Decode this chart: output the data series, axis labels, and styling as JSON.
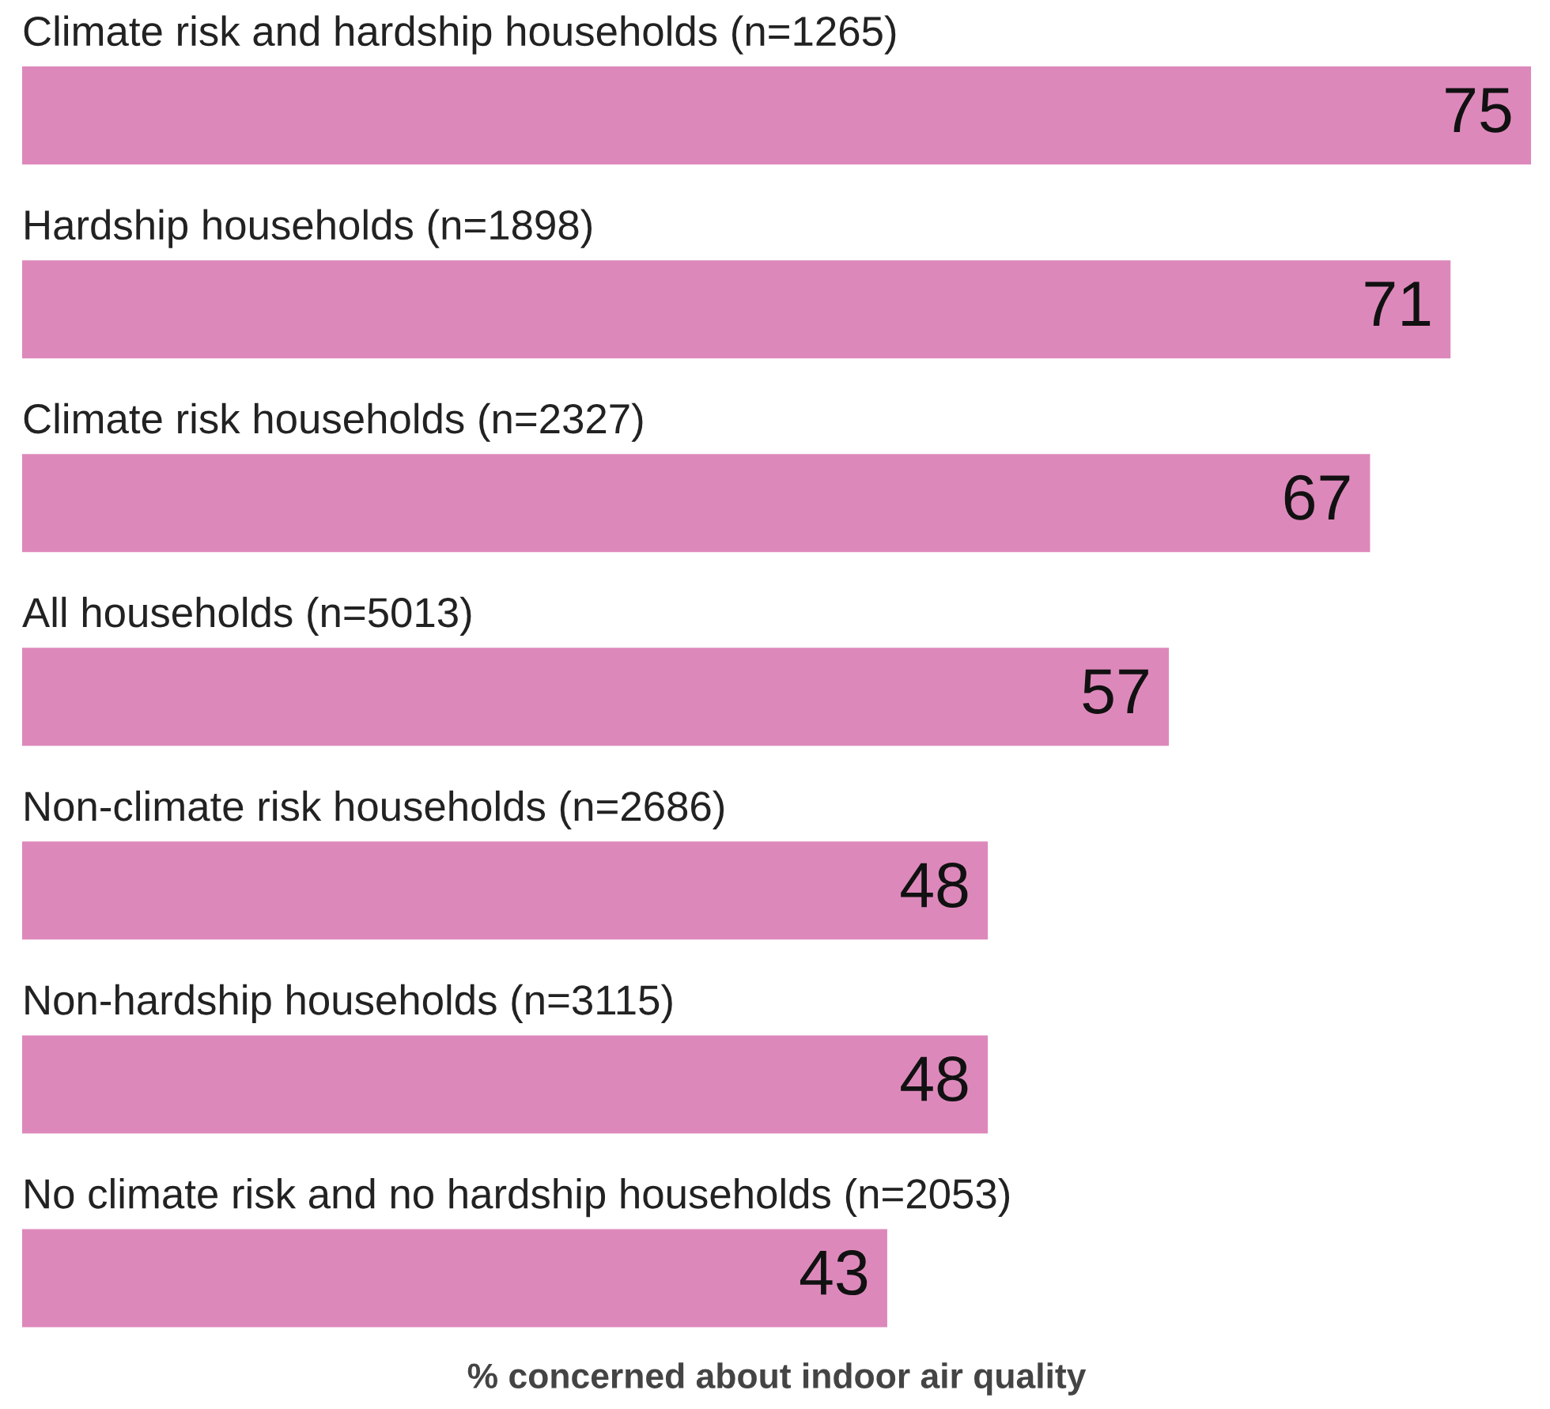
{
  "chart_data": {
    "type": "bar",
    "orientation": "horizontal",
    "xlabel": "% concerned about indoor air quality",
    "categories": [
      "Climate risk and hardship households (n=1265)",
      "Hardship households (n=1898)",
      "Climate risk households (n=2327)",
      "All households (n=5013)",
      "Non-climate risk households (n=2686)",
      "Non-hardship households (n=3115)",
      "No climate risk and no hardship households (n=2053)"
    ],
    "values": [
      75,
      71,
      67,
      57,
      48,
      48,
      43
    ],
    "color": "#dd88bb",
    "data_labels": true,
    "tick_labels": false
  }
}
